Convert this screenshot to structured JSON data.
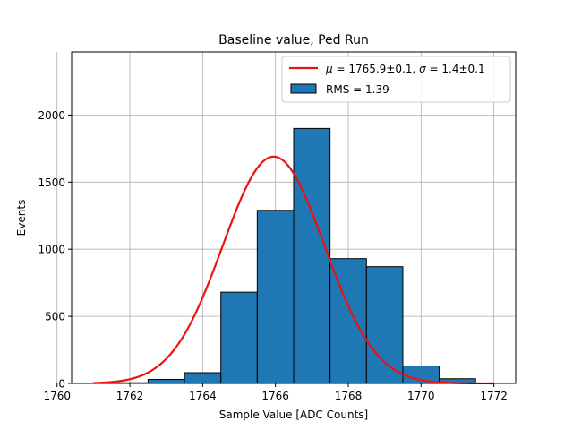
{
  "chart_data": {
    "type": "bar",
    "title": "Baseline value, Ped Run",
    "xlabel": "Sample Value [ADC Counts]",
    "ylabel": "Events",
    "xlim": [
      1760.4,
      1772.6
    ],
    "ylim": [
      0,
      2470
    ],
    "grid": true,
    "xticks": [
      1760,
      1762,
      1764,
      1766,
      1768,
      1770,
      1772
    ],
    "yticks": [
      0,
      500,
      1000,
      1500,
      2000
    ],
    "histogram": {
      "name": "RMS = 1.39",
      "bin_edges": [
        1760.5,
        1761.5,
        1762.5,
        1763.5,
        1764.5,
        1765.5,
        1766.5,
        1767.5,
        1768.5,
        1769.5,
        1770.5,
        1771.5
      ],
      "values": [
        2,
        5,
        30,
        80,
        680,
        1290,
        1900,
        930,
        870,
        130,
        35,
        2
      ],
      "color": "#1f77b4",
      "edgecolor": "#000000"
    },
    "fit": {
      "name_mu": "μ",
      "name_sigma": "σ",
      "label_text_mu": " = 1765.9±0.1, ",
      "label_text_sigma": " = 1.4±0.1",
      "mu": 1765.95,
      "sigma": 1.4,
      "amplitude": 1690,
      "x_range": [
        1761,
        1772
      ],
      "color": "#ee1111"
    },
    "legend": {
      "position": "top-right"
    }
  }
}
